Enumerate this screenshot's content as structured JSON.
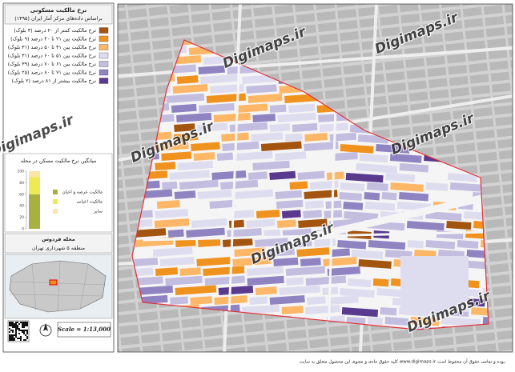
{
  "header": {
    "title": "نرخ مالکیت مسکونی",
    "subtitle": "براساس داده‌های مرکز آمار ایران (۱۳۹۵)"
  },
  "legend": {
    "items": [
      {
        "label": "نرخ مالکیت کمتر از ۲۰ درصد (۳ بلوک)",
        "color": "#a3540f"
      },
      {
        "label": "نرخ مالکیت بین ۲۱ تا ۴۰ درصد (۹ بلوک)",
        "color": "#f0921e"
      },
      {
        "label": "نرخ مالکیت بین ۴۱ تا ۵۰ درصد (۳۱ بلوک)",
        "color": "#fdb766"
      },
      {
        "label": "نرخ مالکیت بین ۵۱ تا ۶۰ درصد (۳۱ بلوک)",
        "color": "#dedcef"
      },
      {
        "label": "نرخ مالکیت بین ۶۱ تا ۷۰ درصد (۳۹ بلوک)",
        "color": "#c3bde0"
      },
      {
        "label": "نرخ مالکیت بین ۷۱ تا ۸۰ درصد (۲۵ بلوک)",
        "color": "#8f84c1"
      },
      {
        "label": "نرخ مالکیت بیشتر از ۸۱ درصد (۲ بلوک)",
        "color": "#5a3a8f"
      }
    ]
  },
  "inset_chart": {
    "title": "میانگین نرخ مالکیت مسکن در محله",
    "ylim": [
      0,
      100
    ],
    "yticks": [
      0,
      20,
      40,
      60,
      80,
      100
    ],
    "series": [
      {
        "name": "مالکیت عرصه و اعیان",
        "color": "#a7b040",
        "value": 60
      },
      {
        "name": "مالکیت اعیانی",
        "color": "#eeea55",
        "value": 30
      },
      {
        "name": "سایر",
        "color": "#fde4a8",
        "value": 10
      }
    ]
  },
  "location": {
    "neighborhood": "محله فردوس",
    "district": "منطقه ۵ شهرداری تهران"
  },
  "scale": "Scale = 1:13,000",
  "watermark": "Digimaps.ir",
  "footer": "کلیه حقوق مادی و معنوی این محصول متعلق به سایت www.digimaps.ir بوده و تمامی حقوق آن محفوظ است."
}
